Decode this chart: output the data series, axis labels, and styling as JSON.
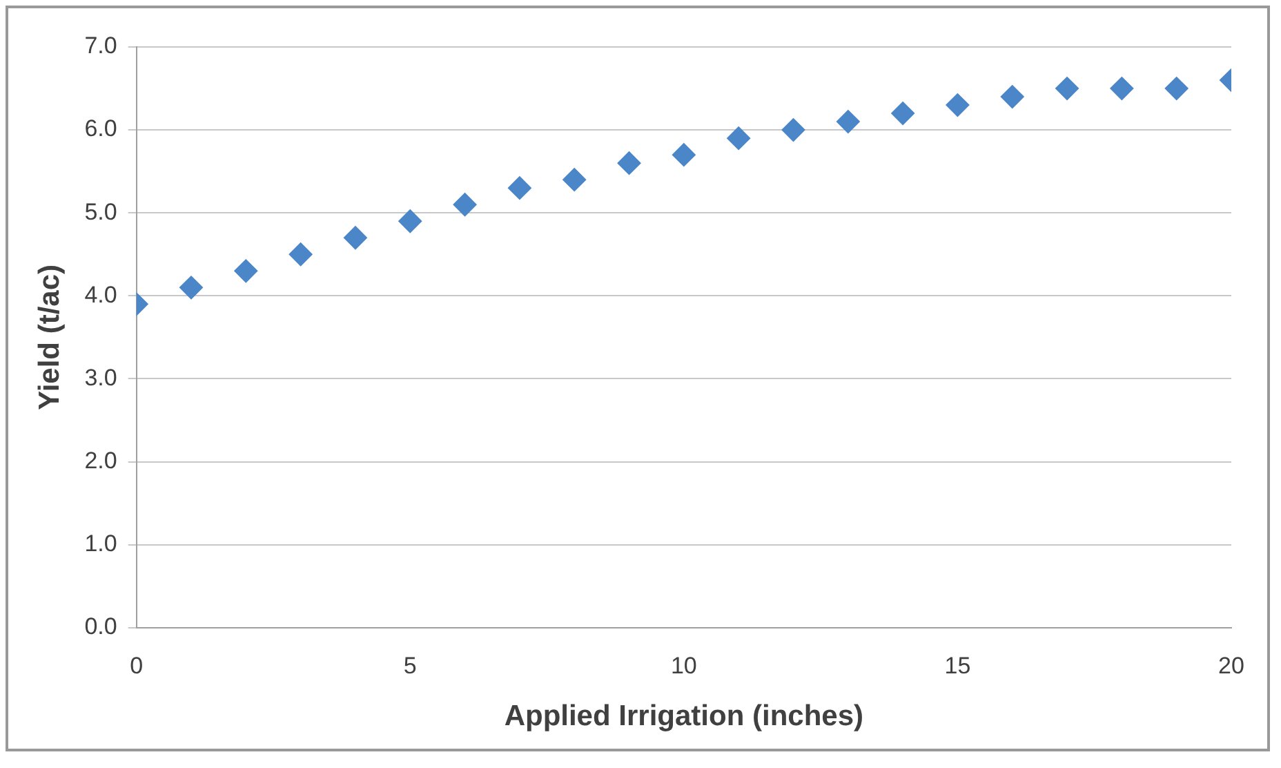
{
  "chart_data": {
    "type": "scatter",
    "xlabel": "Applied Irrigation (inches)",
    "ylabel": "Yield (t/ac)",
    "x": [
      0,
      1,
      2,
      3,
      4,
      5,
      6,
      7,
      8,
      9,
      10,
      11,
      12,
      13,
      14,
      15,
      16,
      17,
      18,
      19,
      20
    ],
    "series": [
      {
        "color": "#4a86c8",
        "values": [
          3.9,
          4.1,
          4.3,
          4.5,
          4.7,
          4.9,
          5.1,
          5.3,
          5.4,
          5.6,
          5.7,
          5.9,
          6.0,
          6.1,
          6.2,
          6.3,
          6.4,
          6.5,
          6.5,
          6.5,
          6.6
        ]
      }
    ],
    "xlim": [
      0,
      20
    ],
    "xticks": [
      0,
      5,
      10,
      15,
      20
    ],
    "ylim": [
      0,
      7
    ],
    "yticks": [
      {
        "value": 0,
        "label": "0.0"
      },
      {
        "value": 1,
        "label": "1.0"
      },
      {
        "value": 2,
        "label": "2.0"
      },
      {
        "value": 3,
        "label": "3.0"
      },
      {
        "value": 4,
        "label": "4.0"
      },
      {
        "value": 5,
        "label": "5.0"
      },
      {
        "value": 6,
        "label": "6.0"
      },
      {
        "value": 7,
        "label": "7.0"
      }
    ],
    "grid": "y",
    "legend": false,
    "marker": "diamond"
  }
}
